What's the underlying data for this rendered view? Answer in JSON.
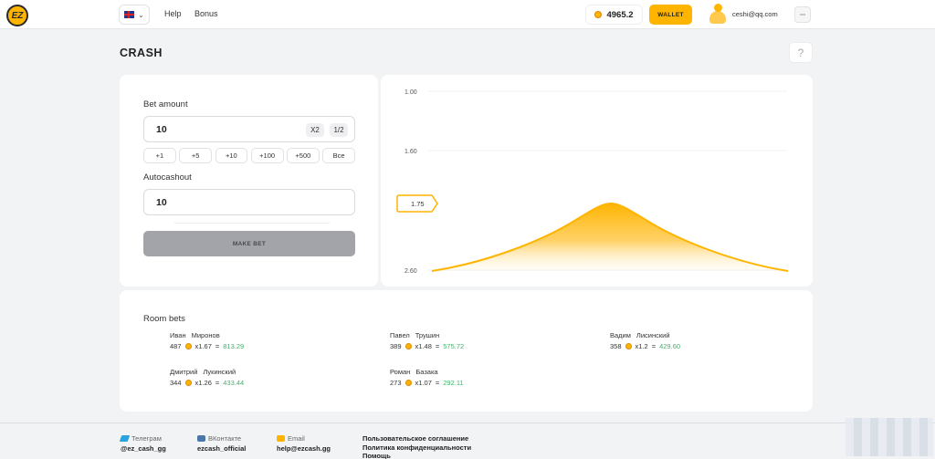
{
  "header": {
    "nav": [
      "Help",
      "Bonus"
    ],
    "balance": "4965.2",
    "wallet_label": "WALLET",
    "user_email": "ceshi@qq.com"
  },
  "page": {
    "title": "CRASH",
    "help_glyph": "?"
  },
  "bet": {
    "amount_label": "Bet amount",
    "amount_value": "10",
    "double_label": "X2",
    "half_label": "1/2",
    "quick_amounts": [
      "+1",
      "+5",
      "+10",
      "+100",
      "+500",
      "Все"
    ],
    "autocashout_label": "Autocashout",
    "autocashout_value": "10",
    "make_bet_label": "MAKE BET"
  },
  "chart_data": {
    "type": "area",
    "y_ticks": [
      "1.00",
      "1.60",
      "2.60"
    ],
    "current_marker": "1.75",
    "color": "#ffb400"
  },
  "room": {
    "title": "Room bets",
    "bets": [
      {
        "first": "Иван",
        "last": "Миронов",
        "amount": "487",
        "mult": "x1.67",
        "eq": "=",
        "win": "813.29"
      },
      {
        "first": "Павел",
        "last": "Трушин",
        "amount": "389",
        "mult": "x1.48",
        "eq": "=",
        "win": "575.72"
      },
      {
        "first": "Вадим",
        "last": "Лисинский",
        "amount": "358",
        "mult": "x1.2",
        "eq": "=",
        "win": "429.60"
      },
      {
        "first": "Дмитрий",
        "last": "Лукинский",
        "amount": "344",
        "mult": "x1.26",
        "eq": "=",
        "win": "433.44"
      },
      {
        "first": "Роман",
        "last": "Базака",
        "amount": "273",
        "mult": "x1.07",
        "eq": "=",
        "win": "292.11"
      }
    ]
  },
  "footer": {
    "telegram_label": "Телеграм",
    "telegram_value": "@ez_cash_gg",
    "vk_label": "ВКонтакте",
    "vk_value": "ezcash_official",
    "email_label": "Email",
    "email_value": "help@ezcash.gg",
    "links": [
      "Пользовательское соглашение",
      "Политика конфиденциальности",
      "Помощь"
    ]
  },
  "colors": {
    "accent": "#ffb400",
    "win": "#3fb36a",
    "disabled_button": "#a3a4a9"
  }
}
